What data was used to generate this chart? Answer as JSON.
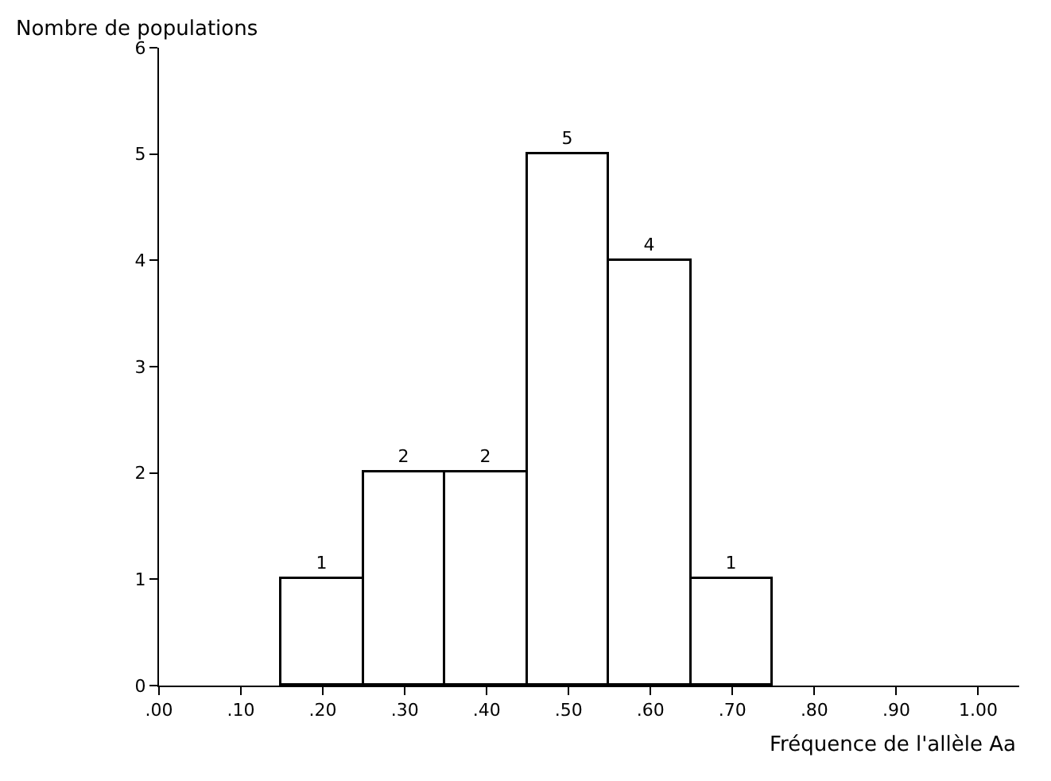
{
  "chart_data": {
    "type": "histogram",
    "xlabel": "Fréquence de l'allèle Aa",
    "ylabel": "Nombre de populations",
    "bins": [
      0.15,
      0.25,
      0.35,
      0.45,
      0.55,
      0.65,
      0.75
    ],
    "values": [
      1,
      2,
      2,
      5,
      4,
      1
    ],
    "color": "#ffffff",
    "data_labels": true,
    "xlim": [
      0,
      1.05
    ],
    "ylim": [
      0,
      6
    ],
    "xticks": [
      {
        "value": 0,
        "label": ".00"
      },
      {
        "value": 0.1,
        "label": ".10"
      },
      {
        "value": 0.2,
        "label": ".20"
      },
      {
        "value": 0.3,
        "label": ".30"
      },
      {
        "value": 0.4,
        "label": ".40"
      },
      {
        "value": 0.5,
        "label": ".50"
      },
      {
        "value": 0.6,
        "label": ".60"
      },
      {
        "value": 0.7,
        "label": ".70"
      },
      {
        "value": 0.8,
        "label": ".80"
      },
      {
        "value": 0.9,
        "label": ".90"
      },
      {
        "value": 1.0,
        "label": "1.00"
      }
    ],
    "yticks": [
      0,
      1,
      2,
      3,
      4,
      5,
      6
    ]
  }
}
